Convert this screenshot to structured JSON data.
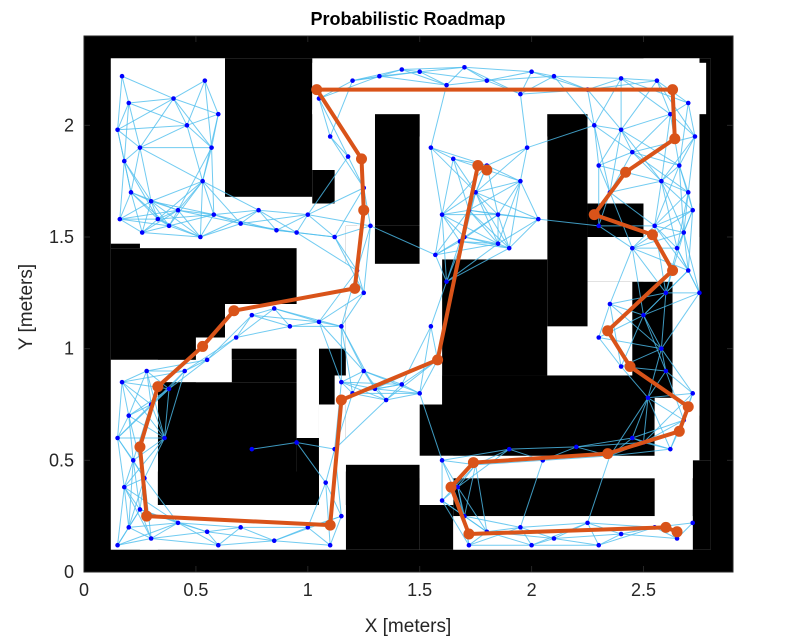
{
  "chart_data": {
    "type": "scatter",
    "title": "Probabilistic Roadmap",
    "xlabel": "X [meters]",
    "ylabel": "Y [meters]",
    "xlim": [
      0,
      2.9
    ],
    "ylim": [
      0,
      2.4
    ],
    "xticks": [
      0,
      0.5,
      1,
      1.5,
      2,
      2.5
    ],
    "xtick_labels": [
      "0",
      "0.5",
      "1",
      "1.5",
      "2",
      "2.5"
    ],
    "yticks": [
      0,
      0.5,
      1,
      1.5,
      2
    ],
    "ytick_labels": [
      "0",
      "0.5",
      "1",
      "1.5",
      "2"
    ],
    "grid": false,
    "colors": {
      "obstacle": "#000000",
      "free_space": "#ffffff",
      "roadmap_edges": "#4dbeee",
      "roadmap_nodes": "#0000ff",
      "path": "#d95319"
    },
    "obstacle_map": {
      "occupied_cells": [
        [
          0.0,
          0.0,
          2.9,
          0.1
        ],
        [
          0.0,
          2.3,
          2.9,
          2.4
        ],
        [
          0.0,
          0.0,
          0.12,
          2.4
        ],
        [
          2.8,
          0.0,
          2.9,
          2.4
        ],
        [
          0.12,
          1.45,
          0.25,
          2.3
        ],
        [
          0.12,
          0.95,
          0.95,
          1.45
        ],
        [
          0.33,
          0.45,
          0.95,
          0.85
        ],
        [
          0.12,
          0.1,
          0.25,
          0.95
        ],
        [
          0.25,
          0.3,
          1.05,
          0.45
        ],
        [
          0.66,
          0.85,
          0.95,
          0.95
        ],
        [
          0.95,
          0.3,
          1.05,
          0.6
        ],
        [
          0.63,
          1.68,
          1.02,
          2.3
        ],
        [
          1.02,
          1.65,
          1.12,
          2.05
        ],
        [
          1.17,
          0.1,
          1.5,
          0.48
        ],
        [
          1.17,
          1.38,
          1.5,
          1.55
        ],
        [
          1.05,
          0.6,
          1.17,
          1.2
        ],
        [
          1.3,
          1.55,
          1.5,
          2.07
        ],
        [
          1.3,
          2.07,
          2.5,
          2.14
        ],
        [
          2.07,
          1.1,
          2.25,
          2.07
        ],
        [
          1.6,
          0.88,
          2.07,
          1.4
        ],
        [
          1.5,
          0.52,
          2.55,
          0.88
        ],
        [
          2.25,
          1.3,
          2.5,
          1.65
        ],
        [
          2.45,
          0.7,
          2.63,
          1.3
        ],
        [
          2.75,
          0.5,
          2.8,
          2.3
        ],
        [
          1.65,
          0.25,
          2.55,
          0.42
        ],
        [
          1.5,
          0.1,
          1.65,
          0.3
        ],
        [
          2.72,
          0.1,
          2.8,
          0.5
        ]
      ],
      "free_cells": [
        [
          0.12,
          1.47,
          0.63,
          2.3
        ],
        [
          0.45,
          1.68,
          0.63,
          2.27
        ],
        [
          1.02,
          2.05,
          2.78,
          2.28
        ],
        [
          1.02,
          1.8,
          1.3,
          2.07
        ],
        [
          1.22,
          1.55,
          1.3,
          1.8
        ],
        [
          1.17,
          1.2,
          1.3,
          1.55
        ],
        [
          0.63,
          1.0,
          1.17,
          1.2
        ],
        [
          0.5,
          0.85,
          0.66,
          1.05
        ],
        [
          0.12,
          0.1,
          0.33,
          0.95
        ],
        [
          0.25,
          0.1,
          1.17,
          0.3
        ],
        [
          1.05,
          0.45,
          1.17,
          0.6
        ],
        [
          1.05,
          0.5,
          1.17,
          0.75
        ],
        [
          1.12,
          0.75,
          1.6,
          0.88
        ],
        [
          1.5,
          0.88,
          1.6,
          1.95
        ],
        [
          1.6,
          1.4,
          2.07,
          1.95
        ],
        [
          1.5,
          0.42,
          2.72,
          0.52
        ],
        [
          1.65,
          0.1,
          2.72,
          0.25
        ],
        [
          1.5,
          0.3,
          1.65,
          0.52
        ],
        [
          2.55,
          0.42,
          2.72,
          0.78
        ],
        [
          2.63,
          0.7,
          2.75,
          1.3
        ],
        [
          2.25,
          1.3,
          2.75,
          1.5
        ],
        [
          2.25,
          1.65,
          2.75,
          2.07
        ],
        [
          2.5,
          2.07,
          2.75,
          2.3
        ]
      ]
    },
    "roadmap_nodes": [
      [
        0.17,
        2.22
      ],
      [
        0.2,
        2.1
      ],
      [
        0.15,
        1.98
      ],
      [
        0.18,
        1.84
      ],
      [
        0.21,
        1.7
      ],
      [
        0.16,
        1.58
      ],
      [
        0.26,
        1.52
      ],
      [
        0.38,
        1.55
      ],
      [
        0.42,
        1.62
      ],
      [
        0.52,
        1.5
      ],
      [
        0.58,
        1.6
      ],
      [
        0.53,
        1.75
      ],
      [
        0.57,
        1.9
      ],
      [
        0.6,
        2.05
      ],
      [
        0.54,
        2.2
      ],
      [
        0.4,
        2.12
      ],
      [
        0.3,
        1.66
      ],
      [
        0.7,
        1.56
      ],
      [
        0.86,
        1.53
      ],
      [
        1.0,
        1.6
      ],
      [
        1.12,
        1.5
      ],
      [
        0.78,
        1.62
      ],
      [
        0.95,
        1.52
      ],
      [
        0.46,
        2.0
      ],
      [
        0.25,
        1.9
      ],
      [
        0.33,
        1.58
      ],
      [
        1.05,
        2.12
      ],
      [
        1.2,
        2.2
      ],
      [
        1.32,
        2.22
      ],
      [
        1.5,
        2.24
      ],
      [
        1.62,
        2.18
      ],
      [
        1.8,
        2.2
      ],
      [
        1.95,
        2.14
      ],
      [
        2.1,
        2.22
      ],
      [
        2.25,
        2.16
      ],
      [
        2.4,
        2.21
      ],
      [
        2.56,
        2.2
      ],
      [
        2.7,
        2.1
      ],
      [
        2.73,
        1.95
      ],
      [
        2.62,
        2.05
      ],
      [
        2.66,
        1.82
      ],
      [
        1.1,
        1.95
      ],
      [
        1.18,
        1.86
      ],
      [
        1.25,
        1.72
      ],
      [
        1.28,
        1.55
      ],
      [
        1.22,
        1.35
      ],
      [
        1.25,
        1.25
      ],
      [
        1.42,
        2.25
      ],
      [
        1.7,
        2.26
      ],
      [
        2.0,
        2.24
      ],
      [
        1.55,
        1.9
      ],
      [
        1.65,
        1.85
      ],
      [
        1.75,
        1.7
      ],
      [
        1.85,
        1.6
      ],
      [
        1.95,
        1.75
      ],
      [
        2.03,
        1.58
      ],
      [
        1.9,
        1.45
      ],
      [
        1.7,
        1.5
      ],
      [
        1.6,
        1.6
      ],
      [
        1.62,
        1.3
      ],
      [
        1.55,
        1.1
      ],
      [
        1.58,
        0.95
      ],
      [
        1.68,
        1.48
      ],
      [
        1.8,
        1.82
      ],
      [
        1.98,
        1.9
      ],
      [
        1.72,
        1.62
      ],
      [
        1.57,
        1.42
      ],
      [
        1.85,
        1.47
      ],
      [
        1.15,
        0.85
      ],
      [
        1.3,
        0.82
      ],
      [
        1.42,
        0.84
      ],
      [
        1.25,
        0.9
      ],
      [
        1.5,
        0.8
      ],
      [
        1.35,
        0.77
      ],
      [
        1.2,
        0.8
      ],
      [
        0.68,
        1.05
      ],
      [
        0.75,
        1.15
      ],
      [
        0.92,
        1.1
      ],
      [
        1.05,
        1.12
      ],
      [
        0.85,
        1.18
      ],
      [
        1.15,
        1.1
      ],
      [
        0.55,
        0.95
      ],
      [
        0.45,
        0.9
      ],
      [
        0.38,
        0.82
      ],
      [
        0.3,
        0.75
      ],
      [
        0.2,
        0.7
      ],
      [
        0.15,
        0.6
      ],
      [
        0.22,
        0.5
      ],
      [
        0.18,
        0.38
      ],
      [
        0.25,
        0.28
      ],
      [
        0.2,
        0.2
      ],
      [
        0.15,
        0.12
      ],
      [
        0.3,
        0.15
      ],
      [
        0.42,
        0.22
      ],
      [
        0.55,
        0.18
      ],
      [
        0.7,
        0.2
      ],
      [
        0.85,
        0.14
      ],
      [
        1.0,
        0.2
      ],
      [
        1.1,
        0.12
      ],
      [
        1.15,
        0.25
      ],
      [
        0.6,
        0.12
      ],
      [
        0.36,
        0.6
      ],
      [
        0.17,
        0.85
      ],
      [
        0.28,
        0.9
      ],
      [
        1.08,
        0.4
      ],
      [
        1.12,
        0.55
      ],
      [
        0.75,
        0.55
      ],
      [
        0.95,
        0.58
      ],
      [
        0.27,
        0.42
      ],
      [
        1.6,
        0.5
      ],
      [
        1.75,
        0.48
      ],
      [
        1.9,
        0.55
      ],
      [
        2.05,
        0.5
      ],
      [
        2.2,
        0.56
      ],
      [
        2.35,
        0.52
      ],
      [
        2.5,
        0.58
      ],
      [
        2.62,
        0.55
      ],
      [
        2.68,
        0.68
      ],
      [
        2.72,
        0.8
      ],
      [
        2.6,
        0.9
      ],
      [
        2.52,
        0.78
      ],
      [
        2.45,
        0.6
      ],
      [
        1.67,
        0.38
      ],
      [
        1.6,
        0.32
      ],
      [
        1.7,
        0.25
      ],
      [
        1.8,
        0.18
      ],
      [
        1.95,
        0.2
      ],
      [
        2.1,
        0.15
      ],
      [
        2.25,
        0.22
      ],
      [
        2.4,
        0.17
      ],
      [
        2.55,
        0.2
      ],
      [
        2.65,
        0.15
      ],
      [
        2.72,
        0.22
      ],
      [
        1.72,
        0.12
      ],
      [
        2.0,
        0.12
      ],
      [
        2.3,
        0.12
      ],
      [
        2.3,
        1.05
      ],
      [
        2.4,
        0.92
      ],
      [
        2.35,
        1.2
      ],
      [
        2.5,
        1.15
      ],
      [
        2.6,
        1.25
      ],
      [
        2.7,
        1.35
      ],
      [
        2.75,
        1.25
      ],
      [
        2.65,
        1.45
      ],
      [
        2.55,
        1.55
      ],
      [
        2.45,
        1.45
      ],
      [
        2.3,
        1.55
      ],
      [
        2.35,
        1.7
      ],
      [
        2.3,
        1.82
      ],
      [
        2.45,
        1.88
      ],
      [
        2.58,
        1.75
      ],
      [
        2.72,
        1.62
      ],
      [
        2.68,
        1.52
      ],
      [
        2.4,
        1.98
      ],
      [
        2.28,
        2.0
      ],
      [
        2.7,
        1.7
      ],
      [
        2.58,
        1.0
      ]
    ],
    "path": [
      [
        1.8,
        1.8
      ],
      [
        1.76,
        1.82
      ],
      [
        1.58,
        0.95
      ],
      [
        1.15,
        0.77
      ],
      [
        1.1,
        0.21
      ],
      [
        0.28,
        0.25
      ],
      [
        0.25,
        0.56
      ],
      [
        0.33,
        0.83
      ],
      [
        0.53,
        1.01
      ],
      [
        0.67,
        1.17
      ],
      [
        1.21,
        1.27
      ],
      [
        1.25,
        1.62
      ],
      [
        1.24,
        1.85
      ],
      [
        1.04,
        2.16
      ],
      [
        2.63,
        2.16
      ],
      [
        2.64,
        1.94
      ],
      [
        2.42,
        1.79
      ],
      [
        2.28,
        1.6
      ],
      [
        2.54,
        1.51
      ],
      [
        2.63,
        1.35
      ],
      [
        2.34,
        1.08
      ],
      [
        2.44,
        0.92
      ],
      [
        2.7,
        0.74
      ],
      [
        2.66,
        0.63
      ],
      [
        2.34,
        0.53
      ],
      [
        1.74,
        0.49
      ],
      [
        1.64,
        0.38
      ],
      [
        1.72,
        0.17
      ],
      [
        2.6,
        0.2
      ],
      [
        2.65,
        0.18
      ]
    ]
  }
}
